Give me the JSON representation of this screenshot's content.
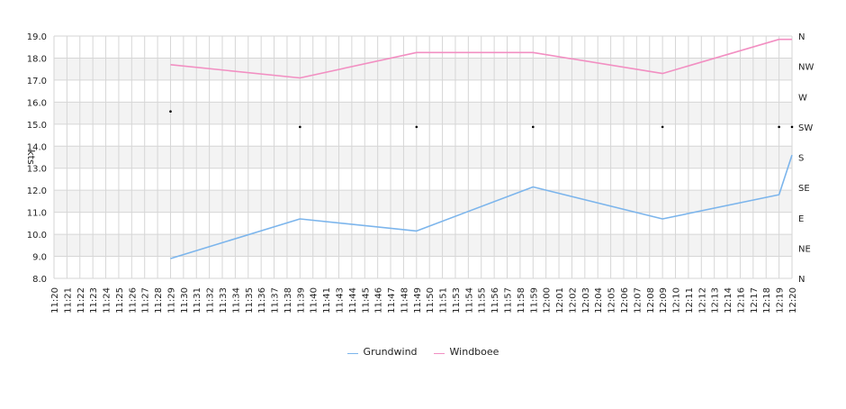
{
  "chart_data": {
    "type": "line",
    "title": "",
    "ylabel": "kts",
    "ylim": [
      8.0,
      19.0
    ],
    "y_ticks": [
      "8.0",
      "9.0",
      "10.0",
      "11.0",
      "12.0",
      "13.0",
      "14.0",
      "15.0",
      "16.0",
      "17.0",
      "18.0",
      "19.0"
    ],
    "y2_ticks": [
      "N",
      "NE",
      "E",
      "SE",
      "S",
      "SW",
      "W",
      "NW",
      "N"
    ],
    "x": [
      "11:20",
      "11:21",
      "11:22",
      "11:23",
      "11:24",
      "11:25",
      "11:26",
      "11:27",
      "11:28",
      "11:29",
      "11:30",
      "11:31",
      "11:32",
      "11:33",
      "11:34",
      "11:35",
      "11:36",
      "11:37",
      "11:38",
      "11:39",
      "11:40",
      "11:41",
      "11:43",
      "11:44",
      "11:45",
      "11:46",
      "11:47",
      "11:48",
      "11:49",
      "11:50",
      "11:51",
      "11:53",
      "11:54",
      "11:55",
      "11:56",
      "11:57",
      "11:58",
      "11:59",
      "12:00",
      "12:01",
      "12:02",
      "12:03",
      "12:04",
      "12:05",
      "12:06",
      "12:07",
      "12:08",
      "12:09",
      "12:10",
      "12:11",
      "12:12",
      "12:13",
      "12:14",
      "12:16",
      "12:17",
      "12:18",
      "12:19",
      "12:20"
    ],
    "series": [
      {
        "name": "Grundwind",
        "color": "#7cb5ec",
        "points": [
          [
            "11:29",
            8.9
          ],
          [
            "11:39",
            10.7
          ],
          [
            "11:49",
            10.15
          ],
          [
            "11:59",
            12.15
          ],
          [
            "12:09",
            10.7
          ],
          [
            "12:19",
            11.8
          ],
          [
            "12:20",
            13.6
          ]
        ]
      },
      {
        "name": "Windboee",
        "color": "#f28fc2",
        "points": [
          [
            "11:29",
            17.7
          ],
          [
            "11:39",
            17.1
          ],
          [
            "11:49",
            18.25
          ],
          [
            "11:59",
            18.25
          ],
          [
            "12:09",
            17.3
          ],
          [
            "12:19",
            18.85
          ],
          [
            "12:20",
            18.85
          ]
        ]
      }
    ],
    "direction_markers": [
      {
        "x": "11:29",
        "dir_deg": 248
      },
      {
        "x": "11:39",
        "dir_deg": 225
      },
      {
        "x": "11:49",
        "dir_deg": 225
      },
      {
        "x": "11:59",
        "dir_deg": 225
      },
      {
        "x": "12:09",
        "dir_deg": 225
      },
      {
        "x": "12:19",
        "dir_deg": 225
      },
      {
        "x": "12:20",
        "dir_deg": 225
      }
    ],
    "grid": true,
    "legend_position": "bottom"
  }
}
